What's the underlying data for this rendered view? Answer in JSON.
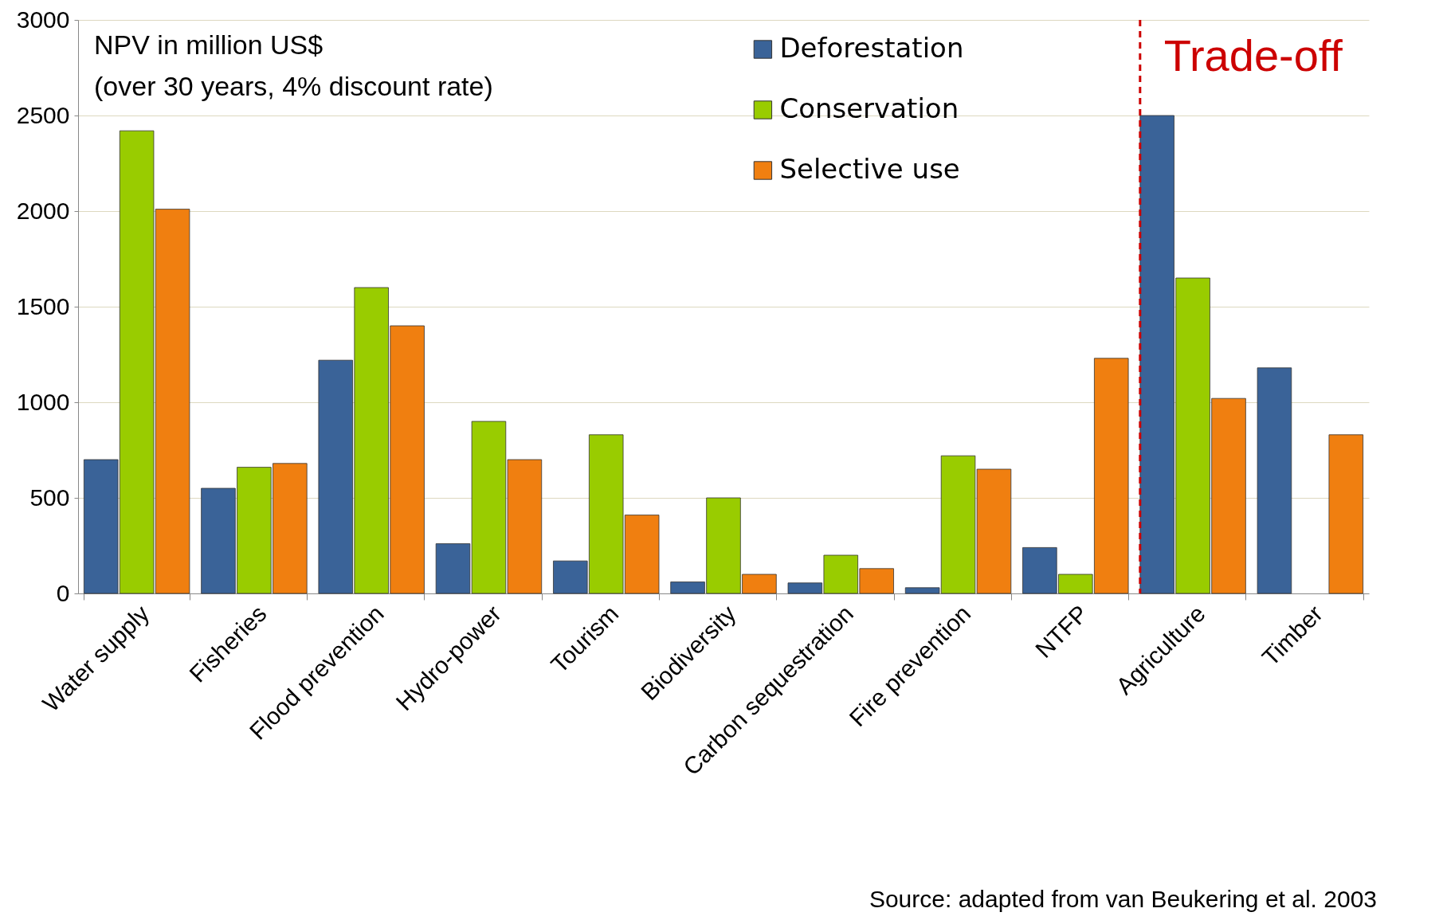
{
  "chart_data": {
    "type": "bar",
    "categories": [
      "Water supply",
      "Fisheries",
      "Flood prevention",
      "Hydro-power",
      "Tourism",
      "Biodiversity",
      "Carbon sequestration",
      "Fire prevention",
      "NTFP",
      "Agriculture",
      "Timber"
    ],
    "series": [
      {
        "name": "Deforestation",
        "color": "#3a6398",
        "values": [
          700,
          550,
          1220,
          260,
          170,
          60,
          55,
          30,
          240,
          2500,
          1180
        ]
      },
      {
        "name": "Conservation",
        "color": "#99cc00",
        "values": [
          2420,
          660,
          1600,
          900,
          830,
          500,
          200,
          720,
          100,
          1650,
          null
        ]
      },
      {
        "name": "Selective use",
        "color": "#f07f10",
        "values": [
          2010,
          680,
          1400,
          700,
          410,
          100,
          130,
          650,
          1230,
          1020,
          830
        ]
      }
    ],
    "ylim": [
      0,
      3000
    ],
    "yticks": [
      0,
      500,
      1000,
      1500,
      2000,
      2500,
      3000
    ],
    "grid": "y",
    "legend": "top",
    "ref_lines": [
      {
        "axis": "x",
        "value": "Agriculture",
        "label": "Trade-off",
        "color": "#cc0000",
        "line_style": "dashed"
      }
    ],
    "annotations": [
      "NPV in million US$",
      "(over 30 years, 4% discount rate)",
      "Source: adapted from van Beukering et al. 2003"
    ]
  }
}
